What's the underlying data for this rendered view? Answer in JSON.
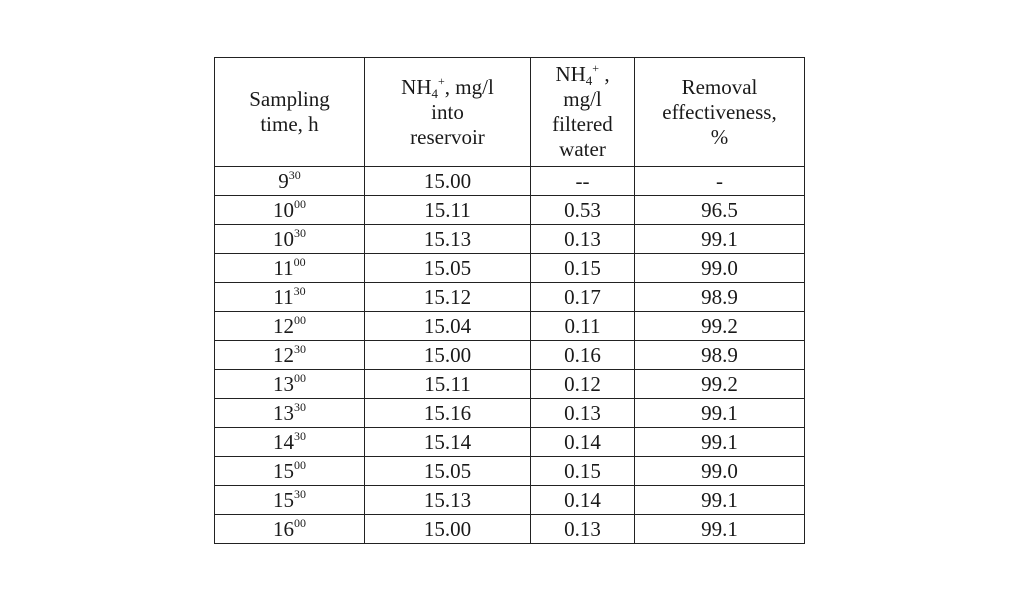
{
  "table": {
    "headers": {
      "sampling": {
        "line1": "Sampling",
        "line2": "time, h"
      },
      "into": {
        "chem": "NH",
        "sub": "4",
        "sup": "+",
        "tail": ", mg/l",
        "line2": "into",
        "line3": "reservoir"
      },
      "filtered": {
        "chem": "NH",
        "sub": "4",
        "sup": "+",
        "tail": " ,",
        "line2": "mg/l",
        "line3": "filtered",
        "line4": "water"
      },
      "removal": {
        "line1": "Removal",
        "line2": "effectiveness,",
        "line3": "%"
      }
    },
    "rows": [
      {
        "hour": "9",
        "minute": "30",
        "into": "15.00",
        "filtered": "--",
        "removal": "-"
      },
      {
        "hour": "10",
        "minute": "00",
        "into": "15.11",
        "filtered": "0.53",
        "removal": "96.5"
      },
      {
        "hour": "10",
        "minute": "30",
        "into": "15.13",
        "filtered": "0.13",
        "removal": "99.1"
      },
      {
        "hour": "11",
        "minute": "00",
        "into": "15.05",
        "filtered": "0.15",
        "removal": "99.0"
      },
      {
        "hour": "11",
        "minute": "30",
        "into": "15.12",
        "filtered": "0.17",
        "removal": "98.9"
      },
      {
        "hour": "12",
        "minute": "00",
        "into": "15.04",
        "filtered": "0.11",
        "removal": "99.2"
      },
      {
        "hour": "12",
        "minute": "30",
        "into": "15.00",
        "filtered": "0.16",
        "removal": "98.9"
      },
      {
        "hour": "13",
        "minute": "00",
        "into": "15.11",
        "filtered": "0.12",
        "removal": "99.2"
      },
      {
        "hour": "13",
        "minute": "30",
        "into": "15.16",
        "filtered": "0.13",
        "removal": "99.1"
      },
      {
        "hour": "14",
        "minute": "30",
        "into": "15.14",
        "filtered": "0.14",
        "removal": "99.1"
      },
      {
        "hour": "15",
        "minute": "00",
        "into": "15.05",
        "filtered": "0.15",
        "removal": "99.0"
      },
      {
        "hour": "15",
        "minute": "30",
        "into": "15.13",
        "filtered": "0.14",
        "removal": "99.1"
      },
      {
        "hour": "16",
        "minute": "00",
        "into": "15.00",
        "filtered": "0.13",
        "removal": "99.1"
      }
    ]
  }
}
